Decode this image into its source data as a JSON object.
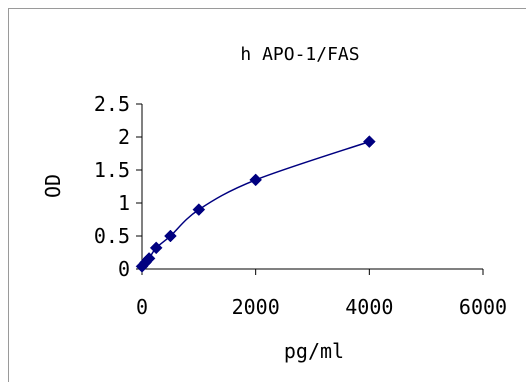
{
  "chart_data": {
    "type": "line",
    "title": "h APO-1/FAS",
    "xlabel": "pg/ml",
    "ylabel": "OD",
    "xlim": [
      0,
      6000
    ],
    "ylim": [
      0,
      2.5
    ],
    "x_ticks": [
      0,
      2000,
      4000,
      6000
    ],
    "x_tick_labels": [
      "0",
      "2000",
      "4000",
      "6000"
    ],
    "y_ticks": [
      0,
      0.5,
      1,
      1.5,
      2,
      2.5
    ],
    "y_tick_labels": [
      "0",
      "0.5",
      "1",
      "1.5",
      "2",
      "2.5"
    ],
    "grid": false,
    "legend": "none",
    "series": [
      {
        "color": "#000080",
        "marker": "diamond",
        "smooth": true,
        "points": [
          {
            "x": 0,
            "y": 0.04
          },
          {
            "x": 62.5,
            "y": 0.1
          },
          {
            "x": 125,
            "y": 0.16
          },
          {
            "x": 250,
            "y": 0.32
          },
          {
            "x": 500,
            "y": 0.5
          },
          {
            "x": 1000,
            "y": 0.9
          },
          {
            "x": 2000,
            "y": 1.35
          },
          {
            "x": 4000,
            "y": 1.93
          }
        ]
      }
    ]
  }
}
